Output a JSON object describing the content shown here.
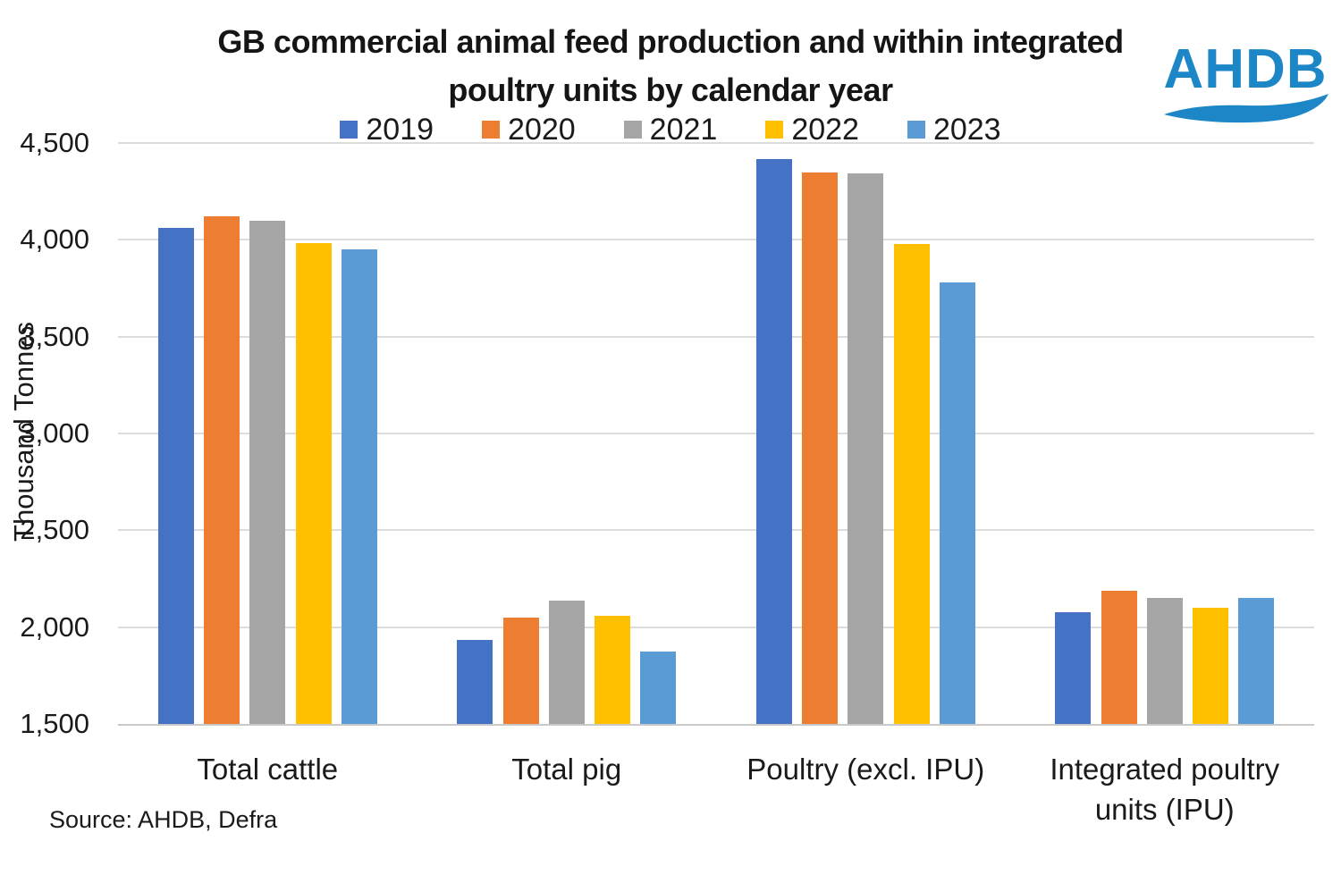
{
  "title": {
    "line1": "GB commercial animal feed production and within integrated",
    "line2": "poultry units by calendar year"
  },
  "logo": {
    "text": "AHDB",
    "color": "#1c86c6"
  },
  "axis": {
    "ylabel": "Thousand Tonnes",
    "ytick_labels": [
      "4,500",
      "4,000",
      "3,500",
      "3,000",
      "2,500",
      "2,000",
      "1,500"
    ]
  },
  "source": {
    "text": "Source: AHDB, Defra"
  },
  "colors": {
    "gridline": "#dcdcdc",
    "axis_line": "#c9c9c9",
    "text": "#1a1a1a"
  },
  "chart_data": {
    "type": "bar",
    "title": "GB commercial animal feed production and within integrated poultry units by calendar year",
    "categories": [
      "Total cattle",
      "Total pig",
      "Poultry (excl. IPU)",
      "Integrated poultry units (IPU)"
    ],
    "series": [
      {
        "name": "2019",
        "color": "#4472c4",
        "values": [
          4060,
          1935,
          4415,
          2075
        ]
      },
      {
        "name": "2020",
        "color": "#ed7d31",
        "values": [
          4120,
          2050,
          4350,
          2190
        ]
      },
      {
        "name": "2021",
        "color": "#a5a5a5",
        "values": [
          4100,
          2135,
          4345,
          2150
        ]
      },
      {
        "name": "2022",
        "color": "#ffc000",
        "values": [
          3985,
          2060,
          3980,
          2100
        ]
      },
      {
        "name": "2023",
        "color": "#5b9bd5",
        "values": [
          3950,
          1875,
          3780,
          2150
        ]
      }
    ],
    "xlabel": "",
    "ylabel": "Thousand Tonnes",
    "ylim": [
      1500,
      4500
    ],
    "yticks": [
      1500,
      2000,
      2500,
      3000,
      3500,
      4000,
      4500
    ],
    "grid": true,
    "legend_position": "top"
  }
}
